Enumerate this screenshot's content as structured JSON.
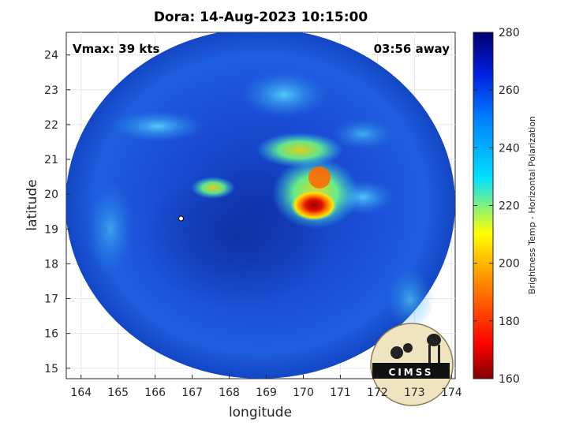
{
  "title": "Dora: 14-Aug-2023 10:15:00",
  "vmax_text": "Vmax: 39 kts",
  "time_text": "03:56 away",
  "x_axis": {
    "label": "longitude",
    "ticks": [
      "164",
      "165",
      "166",
      "167",
      "168",
      "169",
      "170",
      "171",
      "172",
      "173",
      "174"
    ],
    "range": [
      163.6,
      174.1
    ]
  },
  "y_axis": {
    "label": "latitude",
    "ticks": [
      "15",
      "16",
      "17",
      "18",
      "19",
      "20",
      "21",
      "22",
      "23",
      "24"
    ],
    "range": [
      14.7,
      24.65
    ]
  },
  "colorbar": {
    "label": "Brightness Temp - Horizontal Polarization",
    "ticks": [
      "160",
      "180",
      "200",
      "220",
      "240",
      "260",
      "280"
    ],
    "range": [
      160,
      280
    ],
    "colors": [
      "#800000",
      "#ff0000",
      "#ff8000",
      "#ffff00",
      "#00ffff",
      "#0080ff",
      "#0000ff",
      "#000080"
    ]
  },
  "logo_text": "CIMSS",
  "storm_center_marker": {
    "lon": 166.7,
    "lat": 19.3
  },
  "colors": {
    "background_field": "#1a4fd6",
    "swath_edge": "#0c2f9e"
  }
}
